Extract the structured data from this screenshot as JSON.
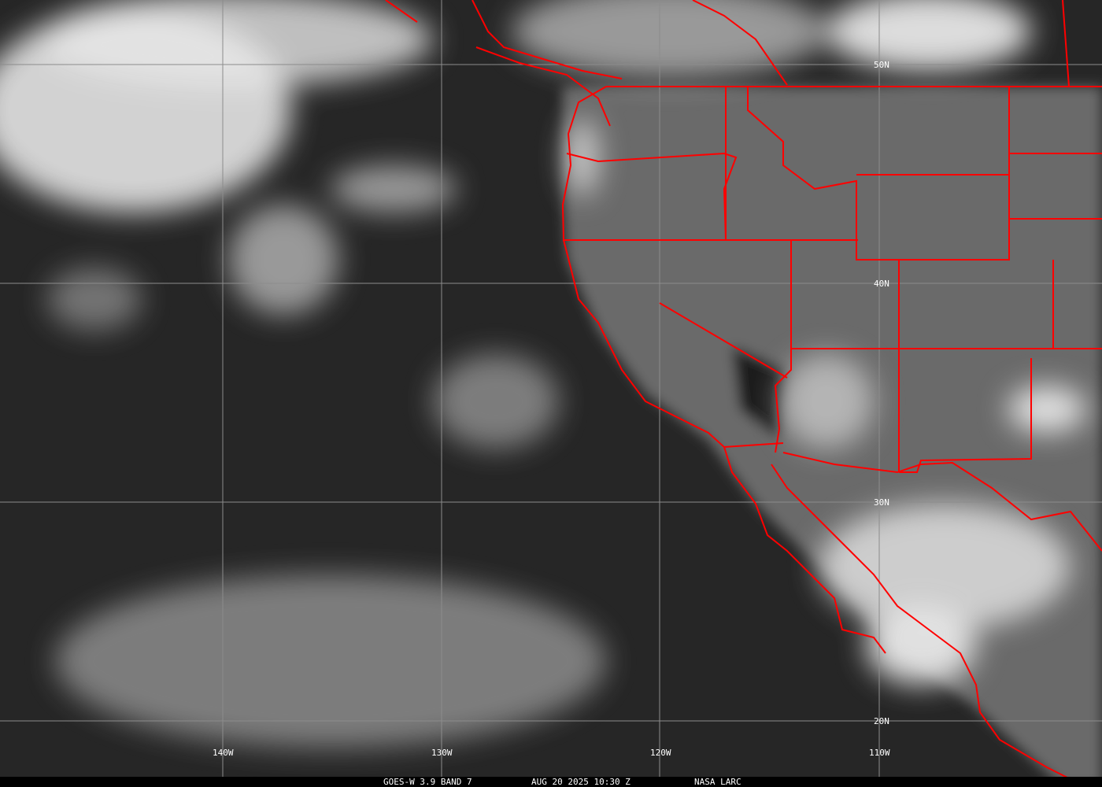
{
  "image": {
    "type": "satellite-infrared",
    "region": "northeast pacific and western north america"
  },
  "caption": {
    "satellite": "GOES-W 3.9 BAND 7",
    "datetime": "AUG 20 2025 10:30 Z",
    "source": "NASA LARC"
  },
  "grid": {
    "longitudes": [
      {
        "label": "140W"
      },
      {
        "label": "130W"
      },
      {
        "label": "120W"
      },
      {
        "label": "110W"
      }
    ],
    "latitudes": [
      {
        "label": "50N"
      },
      {
        "label": "40N"
      },
      {
        "label": "30N"
      },
      {
        "label": "20N"
      }
    ]
  },
  "colors": {
    "boundaries": "#ff0000",
    "grid": "#8c8c8c",
    "clouds": "#e8e8e8",
    "ocean": "#2a2a2a"
  }
}
